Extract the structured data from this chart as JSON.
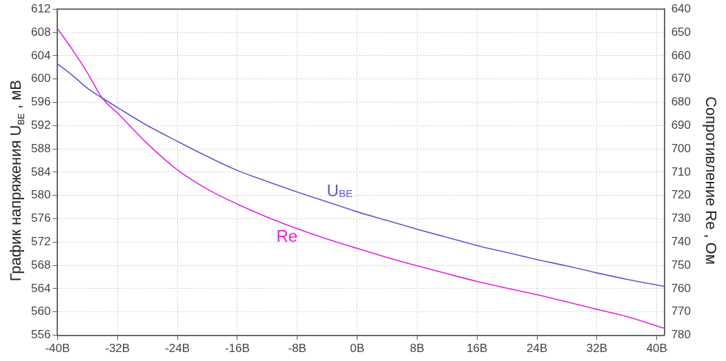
{
  "chart_data": {
    "type": "line",
    "ylabel": "График напряжения U$_{BE}$ , мВ",
    "y2label": "Сопротивление Re , Ом",
    "x": [
      -40,
      -38,
      -36,
      -34,
      -32,
      -28,
      -24,
      -20,
      -16,
      -12,
      -8,
      -4,
      0,
      4,
      8,
      12,
      16,
      20,
      24,
      28,
      32,
      36,
      41
    ],
    "series": [
      {
        "color": "#5a5ac8",
        "values": [
          602.6,
          600.6,
          598.4,
          596.7,
          595.1,
          592.0,
          589.3,
          586.7,
          584.3,
          582.4,
          580.6,
          578.9,
          577.2,
          575.7,
          574.2,
          572.8,
          571.4,
          570.2,
          569.0,
          567.9,
          566.7,
          565.6,
          564.4
        ]
      },
      {
        "color": "#e020e0",
        "axis": "y2",
        "values": [
          648.4,
          657.5,
          667.4,
          678.3,
          684.6,
          697.8,
          709.0,
          717.3,
          723.7,
          729.3,
          734.3,
          738.7,
          742.7,
          746.6,
          750.2,
          753.6,
          756.9,
          759.8,
          762.6,
          765.7,
          768.9,
          772.0,
          777.0
        ]
      }
    ],
    "xlim": [
      -40,
      41
    ],
    "xticks": [
      {
        "value": -40,
        "label": "-40В"
      },
      {
        "value": -32,
        "label": "-32В"
      },
      {
        "value": -24,
        "label": "-24В"
      },
      {
        "value": -16,
        "label": "-16В"
      },
      {
        "value": -8,
        "label": "-8В"
      },
      {
        "value": 0,
        "label": "0В"
      },
      {
        "value": 8,
        "label": "8В"
      },
      {
        "value": 16,
        "label": "16В"
      },
      {
        "value": 24,
        "label": "24В"
      },
      {
        "value": 32,
        "label": "32В"
      },
      {
        "value": 40,
        "label": "40В"
      }
    ],
    "ylim": [
      556,
      612
    ],
    "yticks": [
      556,
      560,
      564,
      568,
      572,
      576,
      580,
      584,
      588,
      592,
      596,
      600,
      604,
      608,
      612
    ],
    "y2lim": [
      780,
      640
    ],
    "y2ticks": [
      640,
      650,
      660,
      670,
      680,
      690,
      700,
      710,
      720,
      730,
      740,
      750,
      760,
      770,
      780
    ],
    "annotations": [
      "U$_{BE}$",
      "Re"
    ],
    "grid": true,
    "legend": false,
    "marker": "none",
    "line_style": "solid"
  }
}
